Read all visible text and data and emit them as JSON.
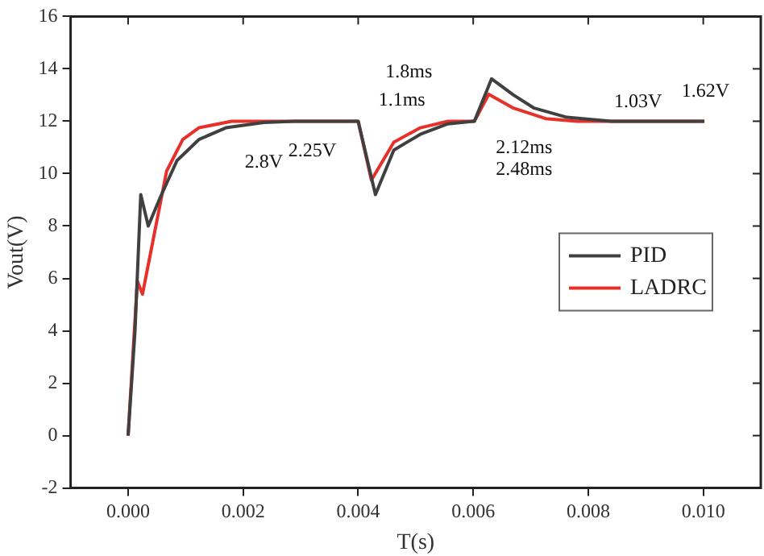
{
  "chart_data": {
    "type": "line",
    "xlabel": "T(s)",
    "ylabel": "Vout(V)",
    "xlim": [
      -0.001,
      0.011
    ],
    "xticks": [
      {
        "value": 0,
        "label": "0.000"
      },
      {
        "value": 0.002,
        "label": "0.002"
      },
      {
        "value": 0.004,
        "label": "0.004"
      },
      {
        "value": 0.006,
        "label": "0.006"
      },
      {
        "value": 0.008,
        "label": "0.008"
      },
      {
        "value": 0.01,
        "label": "0.010"
      }
    ],
    "ylim": [
      -2,
      16
    ],
    "yticks": [
      -2,
      0,
      2,
      4,
      6,
      8,
      10,
      12,
      14,
      16
    ],
    "grid": false,
    "legend": "right",
    "marker": "none",
    "line_style": "solid",
    "series": [
      {
        "name": "PID",
        "color": "#404040",
        "x": [
          0,
          0.00012,
          0.00022,
          0.00035,
          0.00056,
          0.00085,
          0.00123,
          0.0017,
          0.00236,
          0.0029,
          0.004,
          0.0043,
          0.00462,
          0.00508,
          0.00556,
          0.006,
          0.00602,
          0.00632,
          0.0067,
          0.00706,
          0.00763,
          0.0084,
          0.01002
        ],
        "values": [
          0,
          4,
          9.2,
          8,
          9.1,
          10.5,
          11.3,
          11.75,
          11.95,
          12,
          12,
          9.2,
          10.9,
          11.5,
          11.9,
          12,
          12,
          13.62,
          13,
          12.5,
          12.15,
          12,
          12
        ]
      },
      {
        "name": "LADRC",
        "color": "#e8302a",
        "x": [
          0,
          0.00016,
          0.00025,
          0.00042,
          0.00067,
          0.00095,
          0.00123,
          0.0018,
          0.004,
          0.00423,
          0.00462,
          0.00508,
          0.00556,
          0.006,
          0.00602,
          0.00627,
          0.0067,
          0.00726,
          0.0078,
          0.01002
        ],
        "values": [
          0,
          5.9,
          5.4,
          7.3,
          10.1,
          11.3,
          11.75,
          12,
          12,
          9.75,
          11.2,
          11.75,
          12,
          12,
          12,
          13.03,
          12.5,
          12.1,
          12,
          12
        ]
      }
    ],
    "annotations": [
      "2.8V",
      "2.25V",
      "1.8ms",
      "1.1ms",
      "2.12ms",
      "2.48ms",
      "1.03V",
      "1.62V"
    ]
  }
}
